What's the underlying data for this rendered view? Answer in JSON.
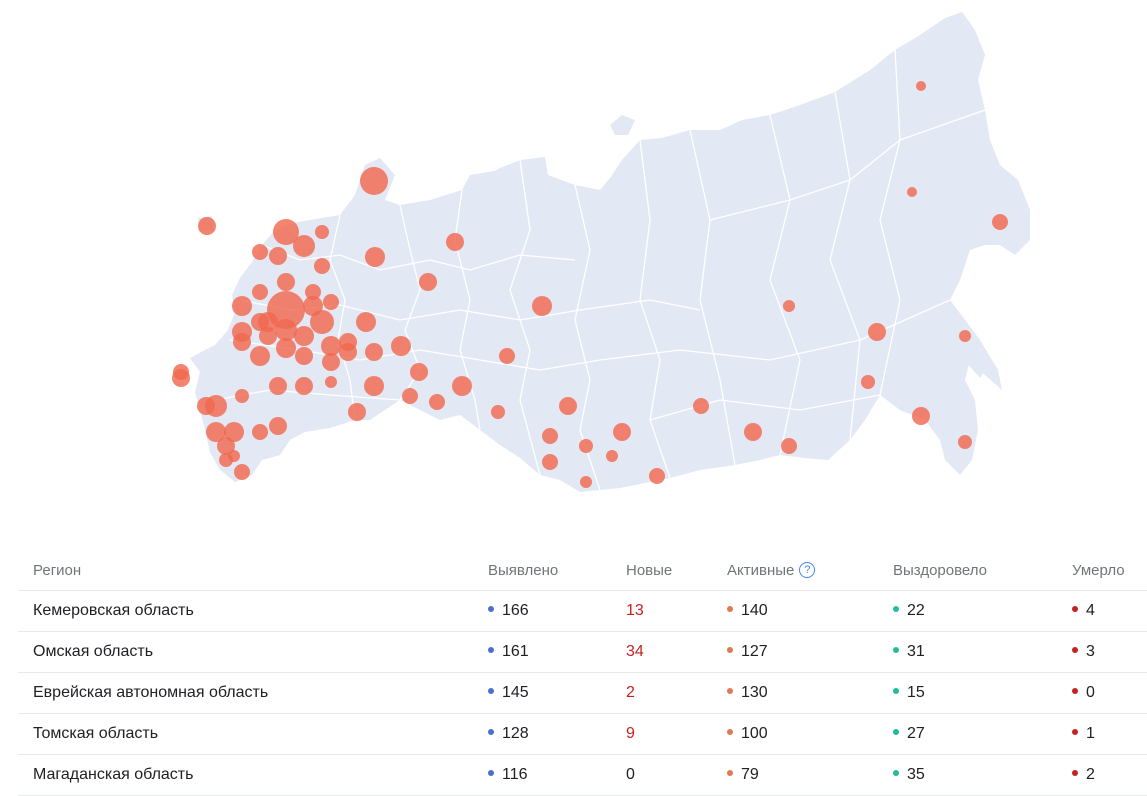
{
  "map": {
    "land_color": "#e3e8f5",
    "border_color": "#ffffff",
    "marker_color": "#f0694f",
    "markers": [
      {
        "r": "tl1",
        "s": 9
      },
      {
        "r": "tl2",
        "s": 13
      },
      {
        "r": "tl3",
        "s": 11
      },
      {
        "r": "tl4",
        "s": 7
      },
      {
        "r": "tl5",
        "s": 8
      },
      {
        "r": "tl6",
        "s": 9
      },
      {
        "r": "tl7",
        "s": 8
      },
      {
        "r": "tl8",
        "s": 9
      },
      {
        "r": "tl9",
        "s": 14
      },
      {
        "r": "tl10",
        "s": 10
      },
      {
        "r": "tl11",
        "s": 9
      },
      {
        "r": "tl12",
        "s": 8
      },
      {
        "r": "tl13",
        "s": 8
      },
      {
        "r": "tl14",
        "s": 10
      },
      {
        "r": "tl15",
        "s": 19
      },
      {
        "r": "tl16",
        "s": 10
      },
      {
        "r": "tl17",
        "s": 8
      },
      {
        "r": "tl18",
        "s": 10
      },
      {
        "r": "tl19",
        "s": 12
      },
      {
        "r": "tl20",
        "s": 9
      },
      {
        "r": "tl21",
        "s": 11
      },
      {
        "r": "tl22",
        "s": 10
      },
      {
        "r": "tl23",
        "s": 9
      },
      {
        "r": "tl24",
        "s": 10
      },
      {
        "r": "tl25",
        "s": 10
      },
      {
        "r": "tl26",
        "s": 9
      },
      {
        "r": "tl27",
        "s": 10
      },
      {
        "r": "tl28",
        "s": 10
      },
      {
        "r": "tl29",
        "s": 9
      },
      {
        "r": "tl30",
        "s": 10
      },
      {
        "r": "tl31",
        "s": 9
      },
      {
        "r": "tl32",
        "s": 9
      },
      {
        "r": "tl33",
        "s": 9
      },
      {
        "r": "tl34",
        "s": 9
      },
      {
        "r": "tl35",
        "s": 10
      },
      {
        "r": "tl36",
        "s": 9
      },
      {
        "r": "tl37",
        "s": 10
      },
      {
        "r": "tl38",
        "s": 8
      },
      {
        "r": "tl39",
        "s": 9
      },
      {
        "r": "tl40",
        "s": 9
      },
      {
        "r": "tl41",
        "s": 6
      },
      {
        "r": "tl42",
        "s": 7
      },
      {
        "r": "tl43",
        "s": 10
      },
      {
        "r": "tl44",
        "s": 9
      },
      {
        "r": "tl45",
        "s": 8
      },
      {
        "r": "tl46",
        "s": 10
      },
      {
        "r": "tl47",
        "s": 8
      },
      {
        "r": "tl48",
        "s": 9
      },
      {
        "r": "tl49",
        "s": 11
      },
      {
        "r": "tl50",
        "s": 9
      },
      {
        "r": "tl51",
        "s": 8
      },
      {
        "r": "tl52",
        "s": 9
      },
      {
        "r": "tl53",
        "s": 10
      },
      {
        "r": "tl54",
        "s": 10
      },
      {
        "r": "tl55",
        "s": 8
      },
      {
        "r": "tl56",
        "s": 9
      },
      {
        "r": "tl57",
        "s": 7
      },
      {
        "r": "tl58",
        "s": 9
      },
      {
        "r": "tl59",
        "s": 8
      },
      {
        "r": "tl60",
        "s": 7
      },
      {
        "r": "tl61",
        "s": 9
      },
      {
        "r": "tl62",
        "s": 8
      },
      {
        "r": "tl63",
        "s": 6
      },
      {
        "r": "tl64",
        "s": 6
      },
      {
        "r": "tl65",
        "s": 8
      },
      {
        "r": "tl66",
        "s": 8
      },
      {
        "r": "tl67",
        "s": 9
      },
      {
        "r": "tl68",
        "s": 8
      },
      {
        "r": "tl69",
        "s": 6
      },
      {
        "r": "tl70",
        "s": 7
      },
      {
        "r": "tl71",
        "s": 9
      },
      {
        "r": "tl72",
        "s": 9
      },
      {
        "r": "tl73",
        "s": 6
      },
      {
        "r": "tl74",
        "s": 5
      },
      {
        "r": "tl75",
        "s": 5
      },
      {
        "r": "tl76",
        "s": 8
      },
      {
        "r": "tl77",
        "s": 7
      },
      {
        "r": "tl78",
        "s": 9
      },
      {
        "r": "tl79",
        "s": 6
      },
      {
        "r": "tl80",
        "s": 7
      },
      {
        "r": "tl81",
        "s": 8
      }
    ]
  },
  "table": {
    "headers": {
      "region": "Регион",
      "detected": "Выявлено",
      "new": "Новые",
      "active": "Активные",
      "active_help": "?",
      "recovered": "Выздоровело",
      "died": "Умерло"
    },
    "colors": {
      "detected": "#4a6fd1",
      "active": "#e07a52",
      "recovered": "#1dbf9a",
      "died": "#c5221f",
      "new_highlight": "#c5221f"
    },
    "rows": [
      {
        "region": "Кемеровская область",
        "detected": "166",
        "new": "13",
        "new_red": true,
        "active": "140",
        "recovered": "22",
        "died": "4"
      },
      {
        "region": "Омская область",
        "detected": "161",
        "new": "34",
        "new_red": true,
        "active": "127",
        "recovered": "31",
        "died": "3"
      },
      {
        "region": "Еврейская автономная область",
        "detected": "145",
        "new": "2",
        "new_red": true,
        "active": "130",
        "recovered": "15",
        "died": "0"
      },
      {
        "region": "Томская область",
        "detected": "128",
        "new": "9",
        "new_red": true,
        "active": "100",
        "recovered": "27",
        "died": "1"
      },
      {
        "region": "Магаданская область",
        "detected": "116",
        "new": "0",
        "new_red": false,
        "active": "79",
        "recovered": "35",
        "died": "2"
      }
    ]
  }
}
